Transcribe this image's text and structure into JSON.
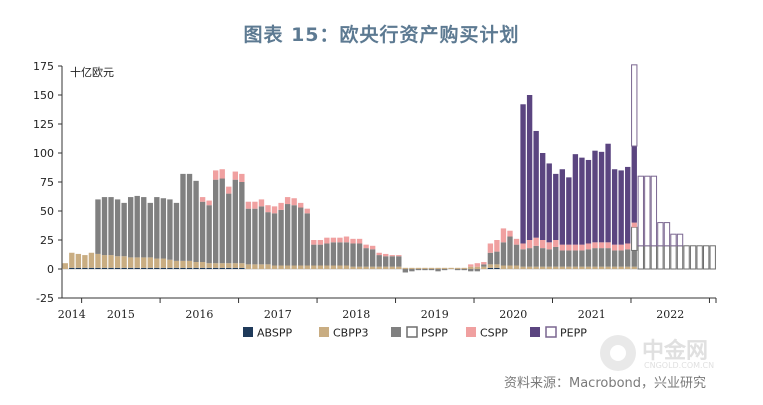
{
  "title": "图表 15：欧央行资产购买计划",
  "source": "资料来源：Macrobond，兴业研究",
  "watermark": {
    "text": "中金网",
    "subtext": "CNGOLD.COM.CN"
  },
  "chart_data": {
    "type": "bar",
    "stacked": true,
    "ylabel": "十亿欧元",
    "ylim": [
      -25,
      175
    ],
    "yticks": [
      -25,
      0,
      25,
      50,
      75,
      100,
      125,
      150,
      175
    ],
    "year_labels": [
      "2014",
      "2015",
      "2016",
      "2017",
      "2018",
      "2019",
      "2020",
      "2021",
      "2022"
    ],
    "start_year": 2014,
    "start_month": 10,
    "legend": [
      {
        "name": "ABSPP",
        "color": "#1f3a5a",
        "style": "filled"
      },
      {
        "name": "CBPP3",
        "color": "#c9ad82",
        "style": "filled"
      },
      {
        "name": "PSPP",
        "color": "#808080",
        "style": "filled"
      },
      {
        "name": "PSPP",
        "color": "#6e6e6e",
        "style": "outline"
      },
      {
        "name": "CSPP",
        "color": "#f0a0a0",
        "style": "filled"
      },
      {
        "name": "PEPP",
        "color": "#5b4580",
        "style": "filled"
      },
      {
        "name": "PEPP",
        "color": "#7a6690",
        "style": "outline"
      }
    ],
    "series": [
      {
        "name": "ABSPP",
        "values": [
          0,
          1,
          1,
          1,
          1,
          1,
          1,
          1,
          1,
          1,
          1,
          1,
          1,
          1,
          1,
          1,
          1,
          1,
          1,
          1,
          1,
          1,
          1,
          1,
          1,
          1,
          1,
          1,
          0,
          0,
          0,
          0,
          0,
          0,
          0,
          0,
          0,
          0,
          0,
          0,
          0,
          0,
          0,
          0,
          0,
          0,
          0,
          0,
          0,
          0,
          0,
          0,
          0,
          0,
          0,
          0,
          0,
          0,
          0,
          0,
          0,
          0,
          0,
          0,
          0,
          1,
          1,
          0,
          0,
          0,
          0,
          0,
          0,
          0,
          0,
          0,
          0,
          0,
          0,
          0,
          0,
          0,
          0,
          0,
          0,
          0,
          0,
          0,
          0,
          0,
          0,
          0,
          0,
          0,
          0,
          0,
          0,
          0,
          0,
          0
        ]
      },
      {
        "name": "CBPP3",
        "values": [
          5,
          13,
          12,
          11,
          13,
          12,
          11,
          11,
          10,
          10,
          9,
          9,
          9,
          9,
          8,
          8,
          7,
          6,
          6,
          6,
          5,
          5,
          4,
          4,
          4,
          4,
          4,
          4,
          4,
          4,
          4,
          4,
          3,
          3,
          3,
          3,
          3,
          3,
          3,
          3,
          3,
          3,
          3,
          3,
          2,
          2,
          2,
          2,
          2,
          2,
          2,
          2,
          1,
          1,
          1,
          1,
          1,
          1,
          1,
          1,
          1,
          1,
          2,
          2,
          2,
          3,
          3,
          3,
          3,
          3,
          2,
          2,
          2,
          2,
          2,
          2,
          2,
          2,
          2,
          2,
          2,
          2,
          2,
          2,
          2,
          2,
          2,
          2,
          0,
          0,
          0,
          0,
          0,
          0,
          0,
          0,
          0,
          0,
          0,
          0
        ]
      },
      {
        "name": "PSPP",
        "values": [
          0,
          0,
          0,
          0,
          0,
          47,
          50,
          50,
          49,
          46,
          52,
          53,
          52,
          47,
          53,
          52,
          52,
          50,
          75,
          75,
          70,
          52,
          50,
          72,
          73,
          60,
          72,
          70,
          48,
          48,
          50,
          45,
          45,
          48,
          53,
          52,
          50,
          45,
          18,
          18,
          19,
          20,
          20,
          20,
          20,
          20,
          16,
          15,
          10,
          9,
          9,
          9,
          -3,
          -2,
          -1,
          -1,
          -1,
          -2,
          -1,
          0,
          -1,
          -1,
          -2,
          -2,
          2,
          10,
          11,
          20,
          25,
          18,
          15,
          16,
          18,
          16,
          15,
          17,
          14,
          14,
          14,
          14,
          15,
          16,
          16,
          16,
          14,
          14,
          15,
          14,
          0,
          0,
          0,
          0,
          0,
          0,
          0,
          0,
          0,
          0,
          0,
          0
        ]
      },
      {
        "name": "PSPP (forecast)",
        "values": [
          0,
          0,
          0,
          0,
          0,
          0,
          0,
          0,
          0,
          0,
          0,
          0,
          0,
          0,
          0,
          0,
          0,
          0,
          0,
          0,
          0,
          0,
          0,
          0,
          0,
          0,
          0,
          0,
          0,
          0,
          0,
          0,
          0,
          0,
          0,
          0,
          0,
          0,
          0,
          0,
          0,
          0,
          0,
          0,
          0,
          0,
          0,
          0,
          0,
          0,
          0,
          0,
          0,
          0,
          0,
          0,
          0,
          0,
          0,
          0,
          0,
          0,
          0,
          0,
          0,
          0,
          0,
          0,
          0,
          0,
          0,
          0,
          0,
          0,
          0,
          0,
          0,
          0,
          0,
          0,
          0,
          0,
          0,
          0,
          0,
          0,
          0,
          20,
          20,
          20,
          20,
          20,
          20,
          20,
          20,
          20,
          20,
          20,
          20,
          20
        ]
      },
      {
        "name": "CSPP",
        "values": [
          0,
          0,
          0,
          0,
          0,
          0,
          0,
          0,
          0,
          0,
          0,
          0,
          0,
          0,
          0,
          0,
          0,
          0,
          0,
          0,
          0,
          4,
          4,
          8,
          8,
          6,
          7,
          7,
          6,
          6,
          6,
          6,
          6,
          6,
          6,
          6,
          4,
          4,
          4,
          4,
          5,
          4,
          4,
          5,
          4,
          4,
          3,
          3,
          2,
          2,
          1,
          1,
          0,
          0,
          0,
          0,
          0,
          0,
          0,
          0,
          0,
          0,
          2,
          3,
          2,
          8,
          10,
          12,
          5,
          5,
          5,
          7,
          7,
          7,
          6,
          6,
          5,
          5,
          5,
          5,
          5,
          5,
          5,
          5,
          5,
          5,
          5,
          4,
          0,
          0,
          0,
          0,
          0,
          0,
          0,
          0,
          0,
          0,
          0,
          0
        ]
      },
      {
        "name": "PEPP",
        "values": [
          0,
          0,
          0,
          0,
          0,
          0,
          0,
          0,
          0,
          0,
          0,
          0,
          0,
          0,
          0,
          0,
          0,
          0,
          0,
          0,
          0,
          0,
          0,
          0,
          0,
          0,
          0,
          0,
          0,
          0,
          0,
          0,
          0,
          0,
          0,
          0,
          0,
          0,
          0,
          0,
          0,
          0,
          0,
          0,
          0,
          0,
          0,
          0,
          0,
          0,
          0,
          0,
          0,
          0,
          0,
          0,
          0,
          0,
          0,
          0,
          0,
          0,
          0,
          0,
          0,
          0,
          0,
          0,
          0,
          0,
          120,
          125,
          92,
          75,
          68,
          57,
          65,
          58,
          78,
          75,
          72,
          79,
          78,
          85,
          65,
          64,
          66,
          66,
          0,
          0,
          0,
          0,
          0,
          0,
          0,
          0,
          0,
          0,
          0,
          0
        ]
      },
      {
        "name": "PEPP (forecast)",
        "values": [
          0,
          0,
          0,
          0,
          0,
          0,
          0,
          0,
          0,
          0,
          0,
          0,
          0,
          0,
          0,
          0,
          0,
          0,
          0,
          0,
          0,
          0,
          0,
          0,
          0,
          0,
          0,
          0,
          0,
          0,
          0,
          0,
          0,
          0,
          0,
          0,
          0,
          0,
          0,
          0,
          0,
          0,
          0,
          0,
          0,
          0,
          0,
          0,
          0,
          0,
          0,
          0,
          0,
          0,
          0,
          0,
          0,
          0,
          0,
          0,
          0,
          0,
          0,
          0,
          0,
          0,
          0,
          0,
          0,
          0,
          0,
          0,
          0,
          0,
          0,
          0,
          0,
          0,
          0,
          0,
          0,
          0,
          0,
          0,
          0,
          0,
          0,
          70,
          60,
          60,
          60,
          20,
          20,
          10,
          10,
          0,
          0,
          0,
          0,
          0
        ]
      }
    ]
  }
}
